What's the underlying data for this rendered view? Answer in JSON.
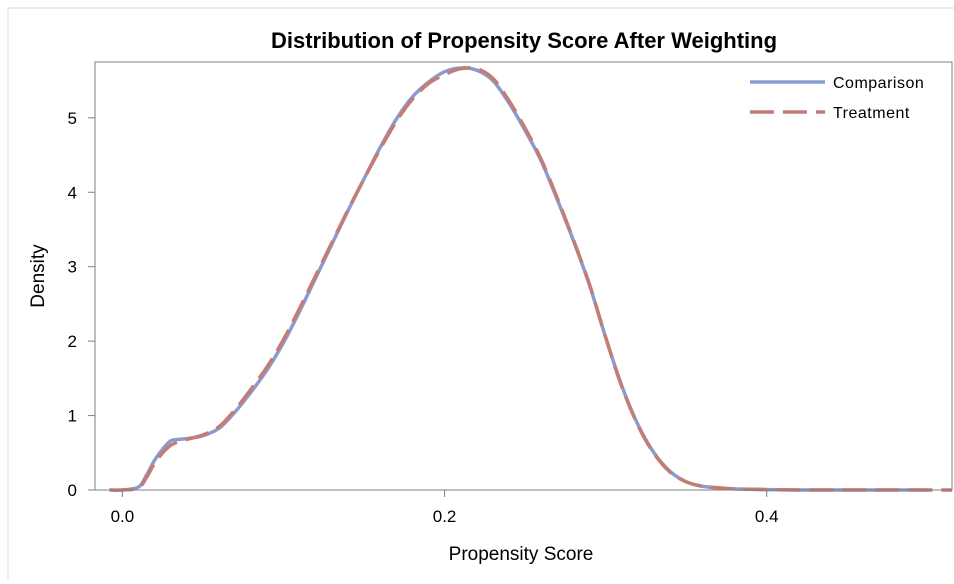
{
  "chart_data": {
    "type": "line",
    "title": "Distribution of Propensity Score After Weighting",
    "xlabel": "Propensity Score",
    "ylabel": "Density",
    "xlim": [
      -0.017,
      0.515
    ],
    "ylim": [
      0,
      5.75
    ],
    "xticks": [
      0.0,
      0.2,
      0.4
    ],
    "xtick_labels": [
      "0.0",
      "0.2",
      "0.4"
    ],
    "yticks": [
      0,
      1,
      2,
      3,
      4,
      5
    ],
    "ytick_labels": [
      "0",
      "1",
      "2",
      "3",
      "4",
      "5"
    ],
    "grid": false,
    "legend_position": "top-right",
    "series": [
      {
        "name": "Comparison",
        "color": "#8a9bd1",
        "line_style": "solid",
        "x": [
          -0.008,
          0.0,
          0.01,
          0.015,
          0.02,
          0.025,
          0.03,
          0.035,
          0.04,
          0.05,
          0.06,
          0.07,
          0.08,
          0.09,
          0.1,
          0.11,
          0.12,
          0.13,
          0.14,
          0.15,
          0.16,
          0.17,
          0.18,
          0.19,
          0.2,
          0.21,
          0.22,
          0.23,
          0.24,
          0.25,
          0.26,
          0.27,
          0.28,
          0.29,
          0.3,
          0.31,
          0.32,
          0.33,
          0.34,
          0.35,
          0.36,
          0.37,
          0.38,
          0.4,
          0.42,
          0.45,
          0.5
        ],
        "y": [
          0.0,
          0.0,
          0.04,
          0.2,
          0.4,
          0.55,
          0.66,
          0.68,
          0.69,
          0.73,
          0.83,
          1.05,
          1.32,
          1.62,
          1.98,
          2.4,
          2.85,
          3.3,
          3.75,
          4.18,
          4.6,
          4.98,
          5.28,
          5.48,
          5.62,
          5.67,
          5.64,
          5.5,
          5.2,
          4.83,
          4.42,
          3.9,
          3.35,
          2.75,
          2.05,
          1.4,
          0.88,
          0.5,
          0.25,
          0.11,
          0.05,
          0.03,
          0.015,
          0.005,
          0.0,
          0.0,
          0.0
        ]
      },
      {
        "name": "Treatment",
        "color": "#c47d75",
        "line_style": "dashed",
        "x": [
          -0.008,
          0.0,
          0.01,
          0.015,
          0.02,
          0.025,
          0.03,
          0.035,
          0.04,
          0.05,
          0.06,
          0.07,
          0.08,
          0.09,
          0.1,
          0.11,
          0.12,
          0.13,
          0.14,
          0.15,
          0.16,
          0.17,
          0.18,
          0.19,
          0.2,
          0.21,
          0.22,
          0.23,
          0.24,
          0.25,
          0.26,
          0.27,
          0.28,
          0.29,
          0.3,
          0.31,
          0.32,
          0.33,
          0.34,
          0.35,
          0.36,
          0.37,
          0.38,
          0.4,
          0.42,
          0.45,
          0.5,
          0.515
        ],
        "y": [
          0.0,
          0.0,
          0.03,
          0.17,
          0.36,
          0.5,
          0.6,
          0.65,
          0.68,
          0.74,
          0.85,
          1.08,
          1.36,
          1.66,
          2.02,
          2.44,
          2.88,
          3.32,
          3.76,
          4.18,
          4.58,
          4.95,
          5.25,
          5.46,
          5.58,
          5.66,
          5.66,
          5.53,
          5.23,
          4.86,
          4.44,
          3.92,
          3.36,
          2.76,
          2.05,
          1.39,
          0.87,
          0.49,
          0.24,
          0.11,
          0.05,
          0.03,
          0.015,
          0.005,
          0.0,
          0.0,
          0.0,
          0.0
        ]
      }
    ]
  }
}
